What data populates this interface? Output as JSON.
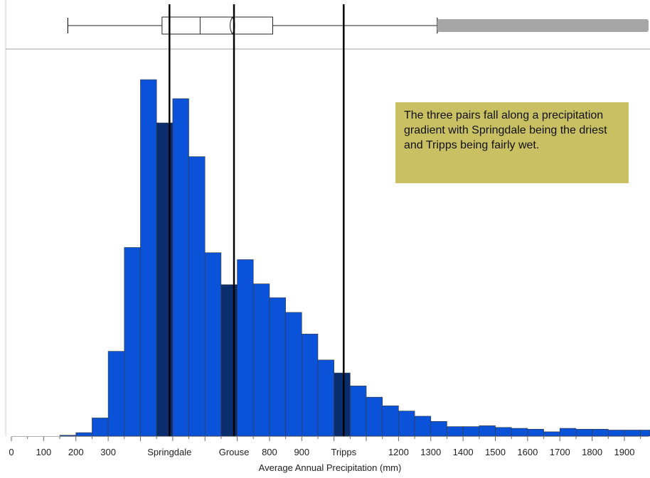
{
  "chart_data": {
    "type": "histogram",
    "xlabel": "Average Annual Precipitation (mm)",
    "xlim": [
      0,
      1975
    ],
    "bin_width": 50,
    "bins": [
      {
        "x0": 150,
        "x1": 200,
        "count": 1
      },
      {
        "x0": 200,
        "x1": 250,
        "count": 4
      },
      {
        "x0": 250,
        "x1": 300,
        "count": 21
      },
      {
        "x0": 300,
        "x1": 350,
        "count": 98
      },
      {
        "x0": 350,
        "x1": 400,
        "count": 218
      },
      {
        "x0": 400,
        "x1": 450,
        "count": 412
      },
      {
        "x0": 450,
        "x1": 500,
        "count": 362,
        "highlight": true
      },
      {
        "x0": 500,
        "x1": 550,
        "count": 390
      },
      {
        "x0": 550,
        "x1": 600,
        "count": 323
      },
      {
        "x0": 600,
        "x1": 650,
        "count": 212
      },
      {
        "x0": 650,
        "x1": 700,
        "count": 175,
        "highlight": true
      },
      {
        "x0": 700,
        "x1": 750,
        "count": 204
      },
      {
        "x0": 750,
        "x1": 800,
        "count": 176
      },
      {
        "x0": 800,
        "x1": 850,
        "count": 160
      },
      {
        "x0": 850,
        "x1": 900,
        "count": 143
      },
      {
        "x0": 900,
        "x1": 950,
        "count": 118
      },
      {
        "x0": 950,
        "x1": 1000,
        "count": 88
      },
      {
        "x0": 1000,
        "x1": 1050,
        "count": 73,
        "highlight": true
      },
      {
        "x0": 1050,
        "x1": 1100,
        "count": 58
      },
      {
        "x0": 1100,
        "x1": 1150,
        "count": 45
      },
      {
        "x0": 1150,
        "x1": 1200,
        "count": 35
      },
      {
        "x0": 1200,
        "x1": 1250,
        "count": 29
      },
      {
        "x0": 1250,
        "x1": 1300,
        "count": 23
      },
      {
        "x0": 1300,
        "x1": 1350,
        "count": 17
      },
      {
        "x0": 1350,
        "x1": 1400,
        "count": 11
      },
      {
        "x0": 1400,
        "x1": 1450,
        "count": 11
      },
      {
        "x0": 1450,
        "x1": 1500,
        "count": 12
      },
      {
        "x0": 1500,
        "x1": 1550,
        "count": 10
      },
      {
        "x0": 1550,
        "x1": 1600,
        "count": 9
      },
      {
        "x0": 1600,
        "x1": 1650,
        "count": 8
      },
      {
        "x0": 1650,
        "x1": 1700,
        "count": 5
      },
      {
        "x0": 1700,
        "x1": 1750,
        "count": 9
      },
      {
        "x0": 1750,
        "x1": 1800,
        "count": 8
      },
      {
        "x0": 1800,
        "x1": 1850,
        "count": 8
      },
      {
        "x0": 1850,
        "x1": 1900,
        "count": 7
      },
      {
        "x0": 1900,
        "x1": 1950,
        "count": 7
      },
      {
        "x0": 1950,
        "x1": 2000,
        "count": 7
      }
    ],
    "ylim": [
      0,
      440
    ],
    "x_tick_labels": [
      {
        "value": 0,
        "label": "0"
      },
      {
        "value": 100,
        "label": "100"
      },
      {
        "value": 200,
        "label": "200"
      },
      {
        "value": 300,
        "label": "300"
      },
      {
        "value": 490,
        "label": "Springdale"
      },
      {
        "value": 690,
        "label": "Grouse"
      },
      {
        "value": 800,
        "label": "800"
      },
      {
        "value": 900,
        "label": "900"
      },
      {
        "value": 1030,
        "label": "Tripps"
      },
      {
        "value": 1200,
        "label": "1200"
      },
      {
        "value": 1300,
        "label": "1300"
      },
      {
        "value": 1400,
        "label": "1400"
      },
      {
        "value": 1500,
        "label": "1500"
      },
      {
        "value": 1600,
        "label": "1600"
      },
      {
        "value": 1700,
        "label": "1700"
      },
      {
        "value": 1800,
        "label": "1800"
      },
      {
        "value": 1900,
        "label": "1900"
      }
    ],
    "reference_lines": [
      {
        "name": "Springdale",
        "value": 490
      },
      {
        "name": "Grouse",
        "value": 690
      },
      {
        "name": "Tripps",
        "value": 1030
      }
    ],
    "boxplot": {
      "whisker_low": 175,
      "q1": 467,
      "median": 585,
      "mean": 685,
      "q3": 810,
      "whisker_high": 1320,
      "outliers_from": 1320,
      "outliers_to": 1975
    },
    "annotation": "The three pairs fall along a precipitation gradient with Springdale being the driest and Tripps being fairly wet.",
    "colors": {
      "bar": "#0a52d8",
      "bar_highlight": "#0a2d6e",
      "bar_edge": "#3a3a3a",
      "reference_line": "#000000",
      "outliers": "#a6a6a6",
      "callout_bg": "#c8c063"
    }
  }
}
